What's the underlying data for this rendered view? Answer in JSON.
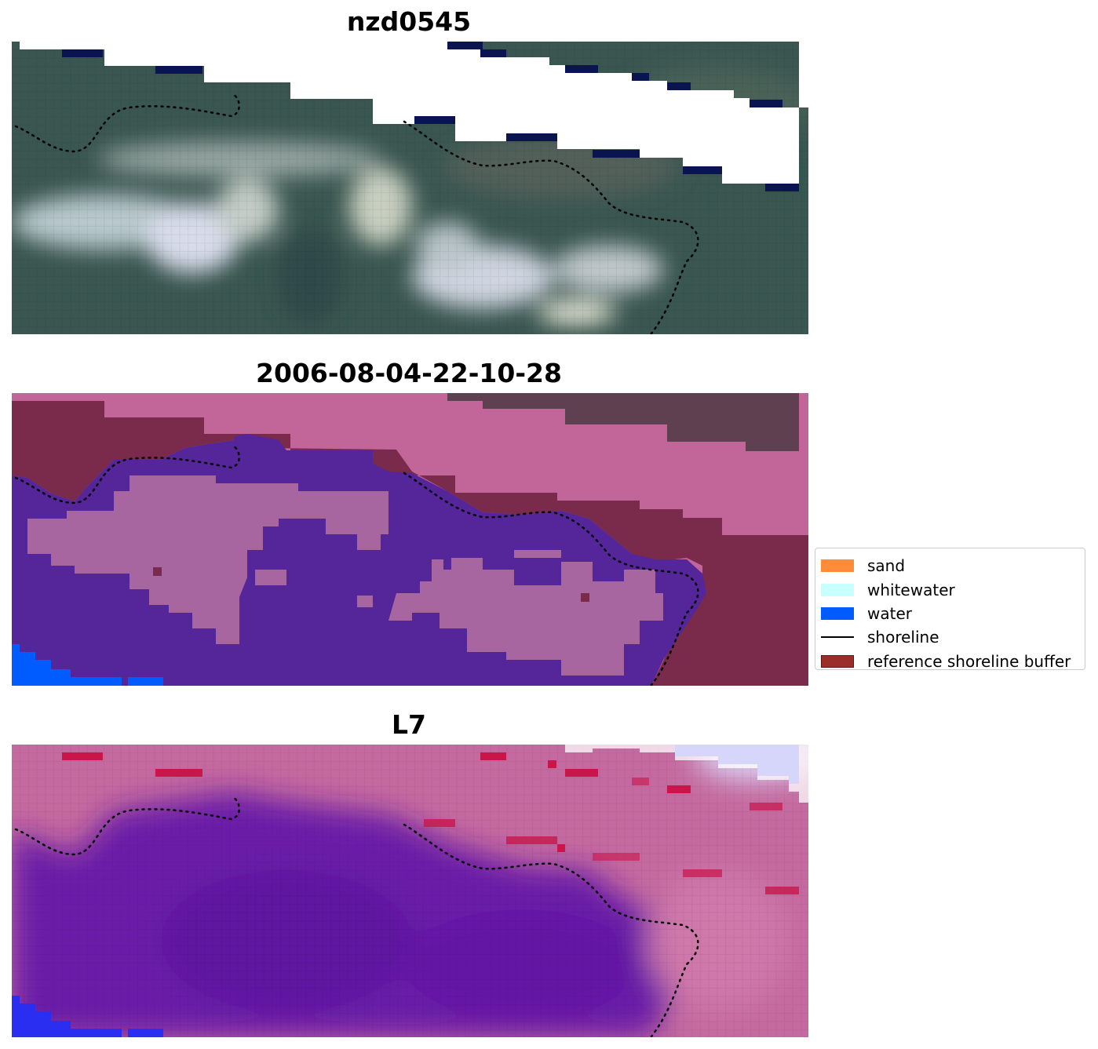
{
  "panels": [
    {
      "title": "nzd0545"
    },
    {
      "title": "2006-08-04-22-10-28"
    },
    {
      "title": "L7"
    }
  ],
  "legend": {
    "items": [
      {
        "label": "sand",
        "color": "#ff8c3a",
        "kind": "patch"
      },
      {
        "label": "whitewater",
        "color": "#c8ffff",
        "kind": "patch"
      },
      {
        "label": "water",
        "color": "#005cff",
        "kind": "patch"
      },
      {
        "label": "shoreline",
        "color": "#000000",
        "kind": "line"
      },
      {
        "label": "reference shoreline buffer",
        "color": "#9b2d2a",
        "kind": "patch"
      }
    ]
  },
  "colors": {
    "forest": "#3c5a52",
    "beach_white": "#e6eae8",
    "dark_blue_strip": "#0a1450",
    "mask_pink": "#c2669a",
    "buffer_maroon": "#7a2a4a",
    "classified_purple": "#55259a",
    "classified_light": "#a866a0",
    "index_purple": "#6a1ea8",
    "index_pink": "#c56aa0"
  }
}
